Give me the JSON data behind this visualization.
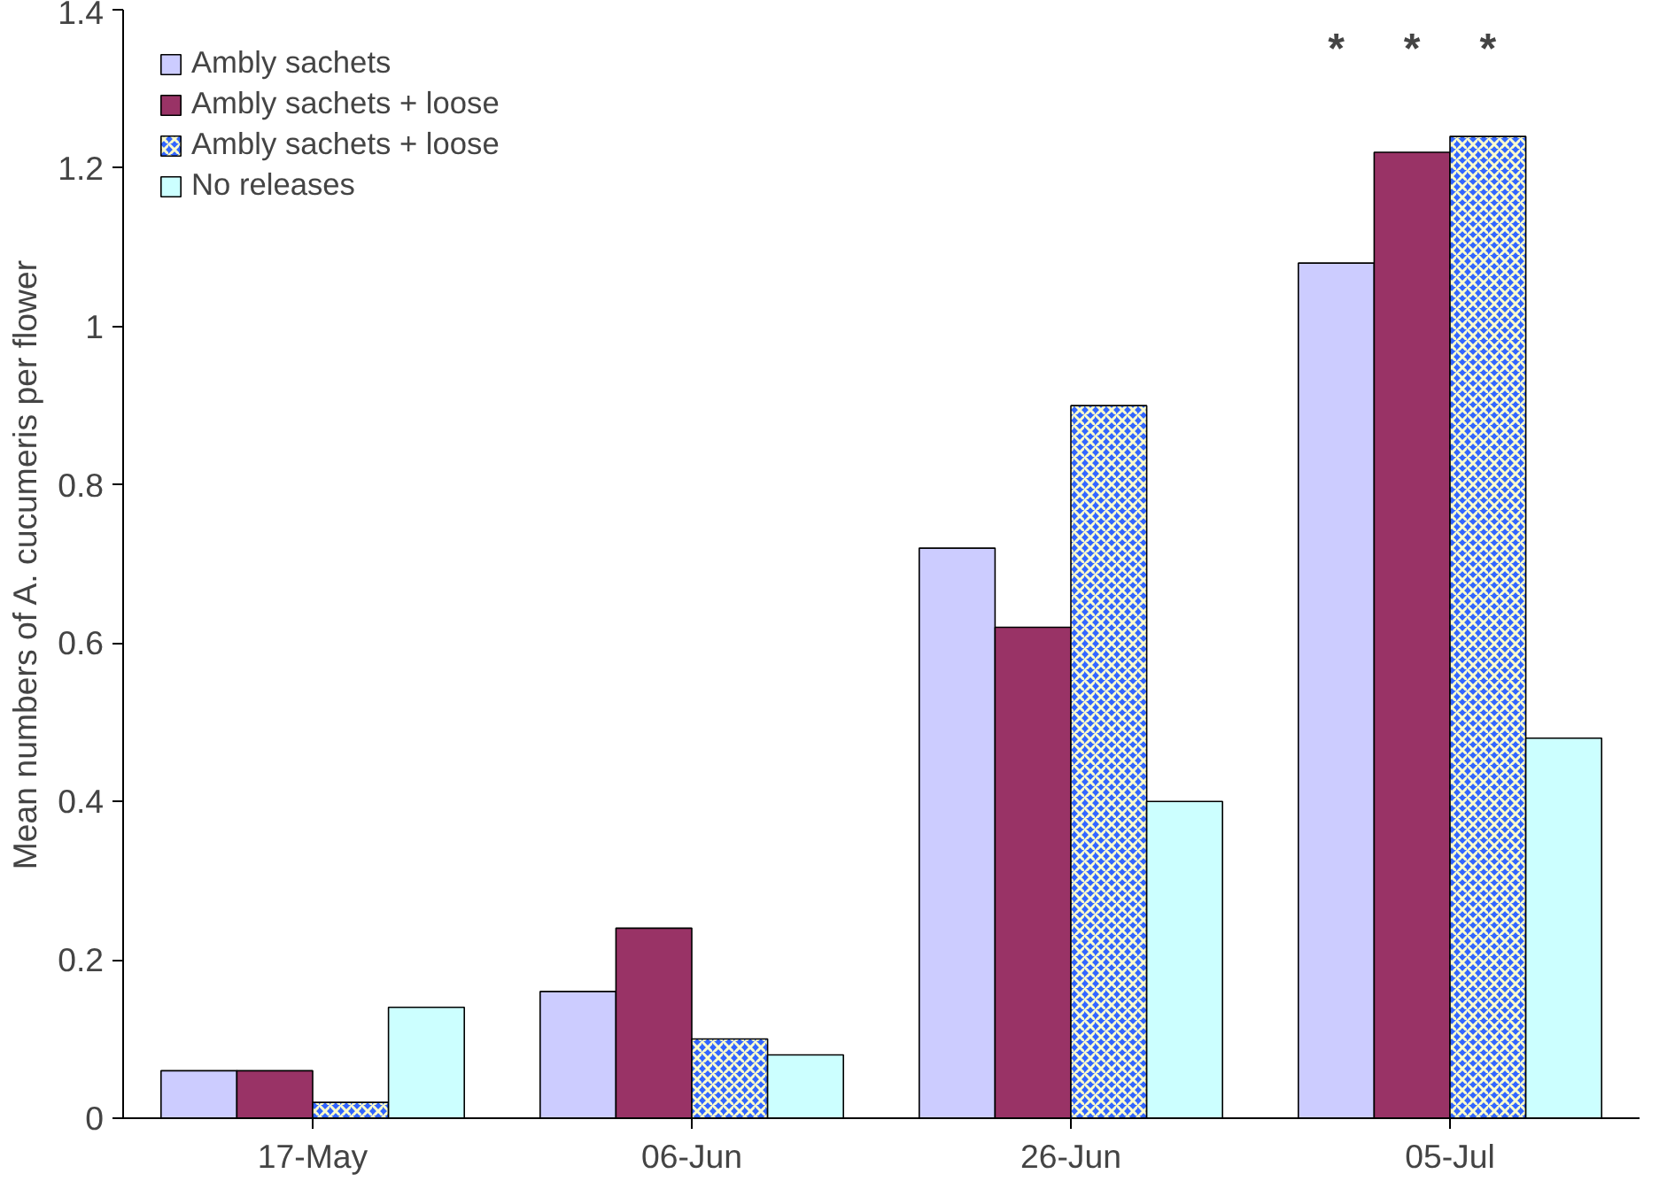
{
  "chart_data": {
    "type": "bar",
    "ylabel": "Mean numbers of A. cucumeris per flower",
    "categories": [
      "17-May",
      "06-Jun",
      "26-Jun",
      "05-Jul"
    ],
    "series": [
      {
        "name": "Ambly sachets",
        "color": "#ccccff",
        "values": [
          0.06,
          0.16,
          0.72,
          1.08
        ]
      },
      {
        "name": "Ambly sachets + loose",
        "color": "#993366",
        "values": [
          0.06,
          0.24,
          0.62,
          1.22
        ]
      },
      {
        "name": "Ambly sachets + loose",
        "color": "#3366ff",
        "values": [
          0.02,
          0.1,
          0.9,
          1.24
        ]
      },
      {
        "name": "No releases",
        "color": "#ccffff",
        "values": [
          0.14,
          0.08,
          0.4,
          0.48
        ]
      }
    ],
    "ylim": [
      0,
      1.4
    ],
    "yticks": [
      0,
      0.2,
      0.4,
      0.6,
      0.8,
      1,
      1.2,
      1.4
    ],
    "grid": false,
    "legend": "top left",
    "annotations": [
      "*",
      "*",
      "*"
    ]
  }
}
